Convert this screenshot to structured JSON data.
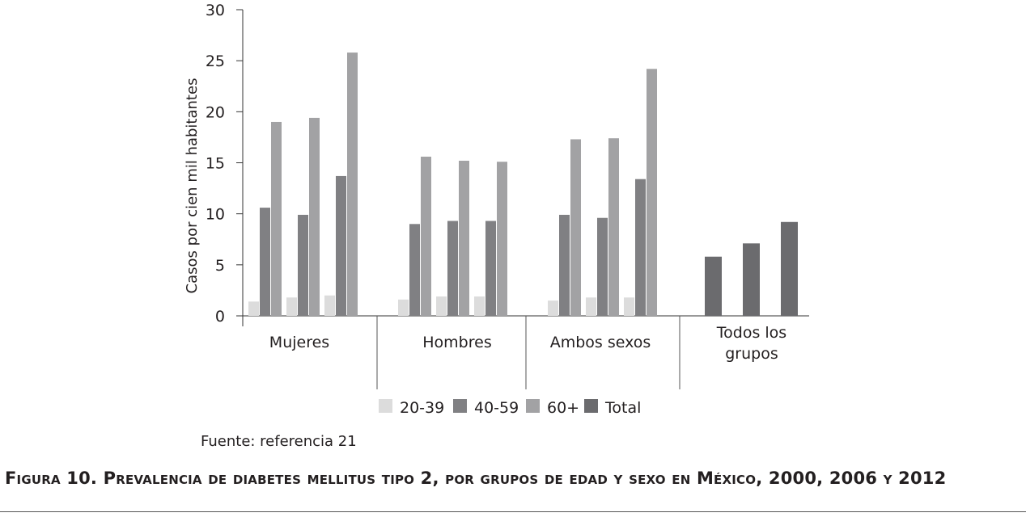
{
  "chart_data": {
    "type": "bar",
    "ylabel": "Casos por cien mil habitantes",
    "ylim": [
      0,
      30
    ],
    "yticks": [
      0,
      5,
      10,
      15,
      20,
      25,
      30
    ],
    "groups": [
      {
        "label": [
          "Mujeres"
        ],
        "bars": [
          {
            "series": "20-39",
            "value": 1.4
          },
          {
            "series": "40-59",
            "value": 10.6
          },
          {
            "series": "60+",
            "value": 19.0
          },
          {
            "series": "20-39",
            "value": 1.8
          },
          {
            "series": "40-59",
            "value": 9.9
          },
          {
            "series": "60+",
            "value": 19.4
          },
          {
            "series": "20-39",
            "value": 2.0
          },
          {
            "series": "40-59",
            "value": 13.7
          },
          {
            "series": "60+",
            "value": 25.8
          }
        ]
      },
      {
        "label": [
          "Hombres"
        ],
        "bars": [
          {
            "series": "20-39",
            "value": 1.6
          },
          {
            "series": "40-59",
            "value": 9.0
          },
          {
            "series": "60+",
            "value": 15.6
          },
          {
            "series": "20-39",
            "value": 1.9
          },
          {
            "series": "40-59",
            "value": 9.3
          },
          {
            "series": "60+",
            "value": 15.2
          },
          {
            "series": "20-39",
            "value": 1.9
          },
          {
            "series": "40-59",
            "value": 9.3
          },
          {
            "series": "60+",
            "value": 15.1
          }
        ]
      },
      {
        "label": [
          "Ambos sexos"
        ],
        "bars": [
          {
            "series": "20-39",
            "value": 1.5
          },
          {
            "series": "40-59",
            "value": 9.9
          },
          {
            "series": "60+",
            "value": 17.3
          },
          {
            "series": "20-39",
            "value": 1.8
          },
          {
            "series": "40-59",
            "value": 9.6
          },
          {
            "series": "60+",
            "value": 17.4
          },
          {
            "series": "20-39",
            "value": 1.8
          },
          {
            "series": "40-59",
            "value": 13.4
          },
          {
            "series": "60+",
            "value": 24.2
          }
        ]
      },
      {
        "label": [
          "Todos los",
          "grupos"
        ],
        "bars": [
          {
            "series": "Total",
            "value": 5.8
          },
          {
            "series": "Total",
            "value": 7.1
          },
          {
            "series": "Total",
            "value": 9.2
          }
        ]
      }
    ],
    "legend": [
      {
        "name": "20-39",
        "color": "#dcdcdc"
      },
      {
        "name": "40-59",
        "color": "#808083"
      },
      {
        "name": "60+",
        "color": "#a2a2a4"
      },
      {
        "name": "Total",
        "color": "#6b6b6e"
      }
    ]
  },
  "source": "Fuente: referencia 21",
  "caption": "Figura 10. Prevalencia de diabetes mellitus tipo 2, por grupos de edad y sexo en México, 2000, 2006 y 2012"
}
